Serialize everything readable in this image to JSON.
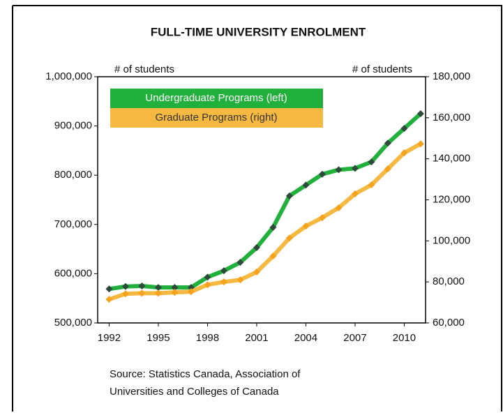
{
  "chart_data": {
    "type": "line",
    "title": "FULL-TIME UNIVERSITY ENROLMENT",
    "ylabel": "# of students",
    "y2label": "# of students",
    "source": [
      "Source: Statistics Canada, Association of",
      "Universities and Colleges of Canada"
    ],
    "x": [
      1992,
      1993,
      1994,
      1995,
      1996,
      1997,
      1998,
      1999,
      2000,
      2001,
      2002,
      2003,
      2004,
      2005,
      2006,
      2007,
      2008,
      2009,
      2010,
      2011
    ],
    "xlim": [
      1991.3,
      2011.3
    ],
    "xticks": [
      1992,
      1995,
      1998,
      2001,
      2004,
      2007,
      2010
    ],
    "ylim": [
      500000,
      1000000
    ],
    "yticks": [
      {
        "value": 500000,
        "label": "500,000"
      },
      {
        "value": 600000,
        "label": "600,000"
      },
      {
        "value": 700000,
        "label": "700,000"
      },
      {
        "value": 800000,
        "label": "800,000"
      },
      {
        "value": 900000,
        "label": "900,000"
      },
      {
        "value": 1000000,
        "label": "1,000,000"
      }
    ],
    "y2lim": [
      60000,
      180000
    ],
    "y2ticks": [
      {
        "value": 60000,
        "label": "60,000"
      },
      {
        "value": 80000,
        "label": "80,000"
      },
      {
        "value": 100000,
        "label": "100,000"
      },
      {
        "value": 120000,
        "label": "120,000"
      },
      {
        "value": 140000,
        "label": "140,000"
      },
      {
        "value": 160000,
        "label": "160,000"
      },
      {
        "value": 180000,
        "label": "180,000"
      }
    ],
    "grid": false,
    "legend": "upper left",
    "series": [
      {
        "name": "Undergraduate Programs (left)",
        "color": "#22b03c",
        "marker_color": "#2e4a3a",
        "label_color": "#ffffff",
        "values": [
          569000,
          574000,
          575000,
          572000,
          572000,
          572000,
          593000,
          606000,
          623000,
          653000,
          694000,
          758000,
          780000,
          802000,
          811000,
          814000,
          827000,
          865000,
          895000,
          925000
        ]
      },
      {
        "name": "Graduate Programs (right)",
        "color": "#f5b942",
        "marker_color": "#f7a21c",
        "label_color": "#333333",
        "axis": "y2",
        "values": [
          71500,
          74200,
          74500,
          74500,
          74900,
          75200,
          78600,
          80000,
          81000,
          84800,
          92600,
          101400,
          107200,
          111300,
          116100,
          122900,
          127300,
          135100,
          142900,
          147300
        ]
      }
    ]
  }
}
